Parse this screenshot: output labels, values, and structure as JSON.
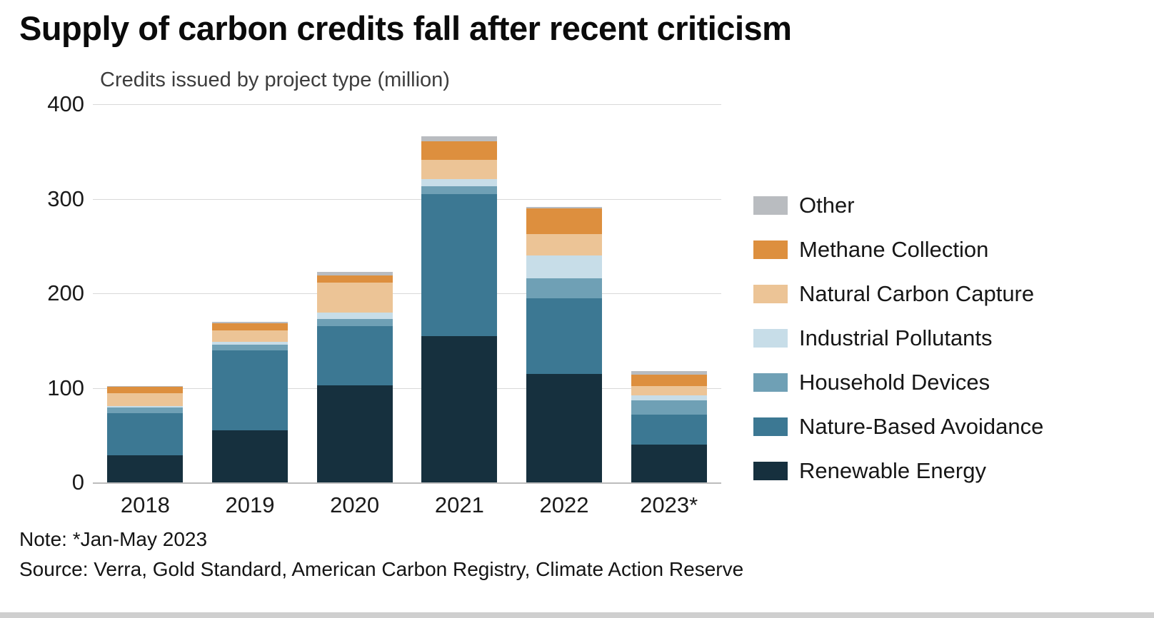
{
  "chart_data": {
    "type": "bar",
    "stacked": true,
    "title": "Supply of carbon credits fall after recent criticism",
    "subtitle": "Credits issued by project type (million)",
    "categories": [
      "2018",
      "2019",
      "2020",
      "2021",
      "2022",
      "2023*"
    ],
    "series": [
      {
        "name": "Renewable Energy",
        "color": "#16303e",
        "values": [
          29,
          55,
          103,
          155,
          115,
          40
        ]
      },
      {
        "name": "Nature-Based Avoidance",
        "color": "#3c7893",
        "values": [
          44,
          85,
          62,
          150,
          80,
          32
        ]
      },
      {
        "name": "Household Devices",
        "color": "#6fa0b5",
        "values": [
          6,
          6,
          8,
          8,
          21,
          15
        ]
      },
      {
        "name": "Industrial Pollutants",
        "color": "#c7dde8",
        "values": [
          2,
          3,
          7,
          8,
          24,
          5
        ]
      },
      {
        "name": "Natural Carbon Capture",
        "color": "#ecc496",
        "values": [
          13,
          12,
          31,
          20,
          23,
          10
        ]
      },
      {
        "name": "Methane Collection",
        "color": "#dd8f3e",
        "values": [
          7,
          7,
          8,
          20,
          27,
          12
        ]
      },
      {
        "name": "Other",
        "color": "#b9bcc0",
        "values": [
          1,
          2,
          4,
          5,
          1,
          4
        ]
      }
    ],
    "legend_order": "reversed",
    "legend_position": "right",
    "grid": "horizontal",
    "yticks": [
      0,
      100,
      200,
      300,
      400
    ],
    "ylim": [
      0,
      400
    ],
    "xlabel": "",
    "ylabel": "Credits issued (million)",
    "note": "Note: *Jan-May 2023",
    "source": "Source: Verra, Gold Standard, American Carbon Registry, Climate Action Reserve"
  }
}
